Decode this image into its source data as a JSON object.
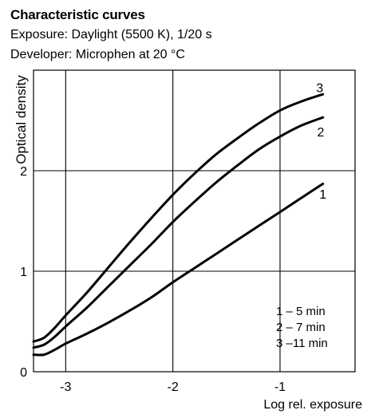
{
  "chart_data": {
    "type": "line",
    "title": "Characteristic curves",
    "subtitle_lines": [
      "Exposure: Daylight (5500 K), 1/20 s",
      "Developer:  Microphen at 20 °C"
    ],
    "xlabel": "Log rel. exposure",
    "ylabel": "Optical density",
    "xlim": [
      -3.3,
      -0.3
    ],
    "ylim": [
      0,
      3.0
    ],
    "xticks": [
      {
        "value": -3,
        "label": "-3"
      },
      {
        "value": -2,
        "label": "-2"
      },
      {
        "value": -1,
        "label": "-1"
      }
    ],
    "yticks": [
      {
        "value": 0,
        "label": "0"
      },
      {
        "value": 1,
        "label": "1"
      },
      {
        "value": 2,
        "label": "2"
      }
    ],
    "grid": true,
    "legend": {
      "placement": "lower-right",
      "entries": [
        "1 – 5 min",
        "2 – 7 min",
        "3 –11 min"
      ]
    },
    "series": [
      {
        "name": "1",
        "x": [
          -3.3,
          -3.2,
          -3.1,
          -3.0,
          -2.8,
          -2.6,
          -2.4,
          -2.2,
          -2.0,
          -1.8,
          -1.6,
          -1.4,
          -1.2,
          -1.0,
          -0.8,
          -0.6
        ],
        "y": [
          0.17,
          0.17,
          0.22,
          0.28,
          0.38,
          0.49,
          0.61,
          0.74,
          0.89,
          1.03,
          1.17,
          1.31,
          1.45,
          1.59,
          1.73,
          1.87
        ]
      },
      {
        "name": "2",
        "x": [
          -3.3,
          -3.2,
          -3.1,
          -3.0,
          -2.8,
          -2.6,
          -2.4,
          -2.2,
          -2.0,
          -1.8,
          -1.6,
          -1.4,
          -1.2,
          -1.0,
          -0.8,
          -0.6
        ],
        "y": [
          0.24,
          0.27,
          0.35,
          0.45,
          0.64,
          0.85,
          1.06,
          1.27,
          1.49,
          1.69,
          1.88,
          2.05,
          2.21,
          2.34,
          2.45,
          2.53
        ]
      },
      {
        "name": "3",
        "x": [
          -3.3,
          -3.2,
          -3.1,
          -3.0,
          -2.8,
          -2.6,
          -2.4,
          -2.2,
          -2.0,
          -1.8,
          -1.6,
          -1.4,
          -1.2,
          -1.0,
          -0.8,
          -0.6
        ],
        "y": [
          0.3,
          0.34,
          0.44,
          0.56,
          0.79,
          1.04,
          1.29,
          1.53,
          1.76,
          1.97,
          2.16,
          2.32,
          2.47,
          2.6,
          2.69,
          2.76
        ]
      }
    ],
    "curve_labels": [
      {
        "series": "1",
        "text": "1",
        "x": -0.6,
        "y": 1.77
      },
      {
        "series": "2",
        "text": "2",
        "x": -0.62,
        "y": 2.39
      },
      {
        "series": "3",
        "text": "3",
        "x": -0.63,
        "y": 2.83
      }
    ]
  }
}
